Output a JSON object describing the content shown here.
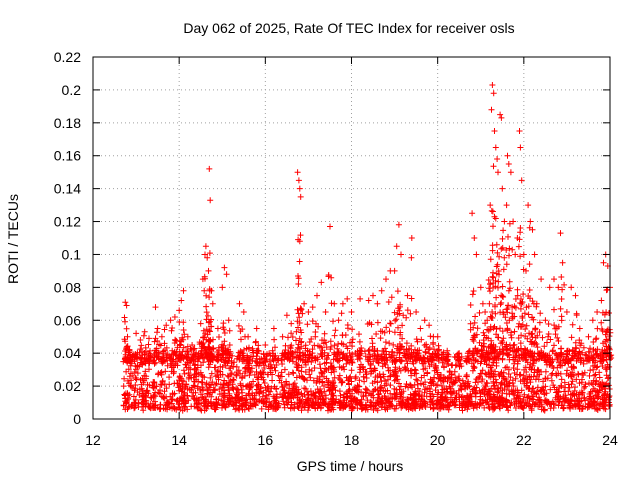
{
  "chart_data": {
    "type": "scatter",
    "title": "Day 062 of 2025, Rate Of TEC Index for receiver osls",
    "xlabel": "GPS time / hours",
    "ylabel": "ROTI / TECUs",
    "xlim": [
      12,
      24
    ],
    "ylim": [
      0,
      0.22
    ],
    "x_ticks": [
      12,
      14,
      16,
      18,
      20,
      22,
      24
    ],
    "x_tick_labels": [
      "12",
      "14",
      "16",
      "18",
      "20",
      "22",
      "24"
    ],
    "y_ticks": [
      0,
      0.02,
      0.04,
      0.06,
      0.08,
      0.1,
      0.12,
      0.14,
      0.16,
      0.18,
      0.2,
      0.22
    ],
    "y_tick_labels": [
      "0",
      "0.02",
      "0.04",
      "0.06",
      "0.08",
      "0.1",
      "0.12",
      "0.14",
      "0.16",
      "0.18",
      "0.2",
      "0.22"
    ],
    "grid": true,
    "marker": "+",
    "marker_color": "#ff0000",
    "series": [
      {
        "name": "ROTI",
        "points": [
          [
            12.75,
            0.071
          ],
          [
            12.78,
            0.069
          ],
          [
            12.8,
            0.05
          ],
          [
            12.85,
            0.042
          ],
          [
            12.9,
            0.035
          ],
          [
            13.0,
            0.052
          ],
          [
            13.1,
            0.048
          ],
          [
            13.2,
            0.053
          ],
          [
            13.3,
            0.049
          ],
          [
            13.45,
            0.068
          ],
          [
            13.5,
            0.055
          ],
          [
            13.6,
            0.05
          ],
          [
            13.7,
            0.057
          ],
          [
            13.8,
            0.06
          ],
          [
            13.9,
            0.062
          ],
          [
            14.0,
            0.066
          ],
          [
            14.05,
            0.072
          ],
          [
            14.1,
            0.078
          ],
          [
            14.2,
            0.05
          ],
          [
            14.3,
            0.045
          ],
          [
            14.5,
            0.058
          ],
          [
            14.55,
            0.085
          ],
          [
            14.6,
            0.1
          ],
          [
            14.62,
            0.105
          ],
          [
            14.65,
            0.098
          ],
          [
            14.68,
            0.09
          ],
          [
            14.7,
            0.152
          ],
          [
            14.72,
            0.133
          ],
          [
            14.75,
            0.078
          ],
          [
            14.78,
            0.07
          ],
          [
            14.9,
            0.055
          ],
          [
            15.0,
            0.08
          ],
          [
            15.05,
            0.092
          ],
          [
            15.1,
            0.088
          ],
          [
            15.15,
            0.06
          ],
          [
            15.4,
            0.07
          ],
          [
            15.5,
            0.065
          ],
          [
            15.6,
            0.05
          ],
          [
            15.8,
            0.055
          ],
          [
            16.0,
            0.045
          ],
          [
            16.2,
            0.055
          ],
          [
            16.4,
            0.05
          ],
          [
            16.5,
            0.063
          ],
          [
            16.6,
            0.058
          ],
          [
            16.75,
            0.15
          ],
          [
            16.78,
            0.145
          ],
          [
            16.8,
            0.14
          ],
          [
            16.82,
            0.135
          ],
          [
            16.9,
            0.07
          ],
          [
            17.0,
            0.065
          ],
          [
            17.1,
            0.068
          ],
          [
            17.2,
            0.075
          ],
          [
            17.3,
            0.083
          ],
          [
            17.4,
            0.065
          ],
          [
            17.5,
            0.117
          ],
          [
            17.6,
            0.07
          ],
          [
            17.7,
            0.06
          ],
          [
            17.8,
            0.07
          ],
          [
            17.9,
            0.073
          ],
          [
            18.0,
            0.065
          ],
          [
            18.2,
            0.073
          ],
          [
            18.4,
            0.072
          ],
          [
            18.5,
            0.075
          ],
          [
            18.6,
            0.07
          ],
          [
            18.7,
            0.078
          ],
          [
            18.8,
            0.085
          ],
          [
            18.9,
            0.09
          ],
          [
            19.0,
            0.09
          ],
          [
            19.05,
            0.105
          ],
          [
            19.1,
            0.118
          ],
          [
            19.15,
            0.1
          ],
          [
            19.2,
            0.063
          ],
          [
            19.3,
            0.075
          ],
          [
            19.4,
            0.11
          ],
          [
            19.5,
            0.065
          ],
          [
            19.6,
            0.055
          ],
          [
            19.7,
            0.06
          ],
          [
            19.8,
            0.057
          ],
          [
            19.9,
            0.05
          ],
          [
            20.0,
            0.05
          ],
          [
            20.2,
            0.038
          ],
          [
            20.5,
            0.04
          ],
          [
            20.7,
            0.04
          ],
          [
            20.8,
            0.125
          ],
          [
            20.85,
            0.11
          ],
          [
            20.9,
            0.1
          ],
          [
            21.0,
            0.08
          ],
          [
            21.05,
            0.07
          ],
          [
            21.1,
            0.065
          ],
          [
            21.15,
            0.06
          ],
          [
            21.2,
            0.07
          ],
          [
            21.22,
            0.13
          ],
          [
            21.25,
            0.188
          ],
          [
            21.27,
            0.203
          ],
          [
            21.3,
            0.198
          ],
          [
            21.32,
            0.175
          ],
          [
            21.35,
            0.165
          ],
          [
            21.38,
            0.158
          ],
          [
            21.4,
            0.15
          ],
          [
            21.45,
            0.185
          ],
          [
            21.48,
            0.183
          ],
          [
            21.5,
            0.14
          ],
          [
            21.55,
            0.12
          ],
          [
            21.6,
            0.13
          ],
          [
            21.62,
            0.16
          ],
          [
            21.65,
            0.155
          ],
          [
            21.7,
            0.15
          ],
          [
            21.75,
            0.12
          ],
          [
            21.8,
            0.1
          ],
          [
            21.85,
            0.11
          ],
          [
            21.9,
            0.175
          ],
          [
            21.92,
            0.165
          ],
          [
            21.95,
            0.145
          ],
          [
            22.0,
            0.1
          ],
          [
            22.05,
            0.09
          ],
          [
            22.1,
            0.13
          ],
          [
            22.15,
            0.12
          ],
          [
            22.2,
            0.115
          ],
          [
            22.25,
            0.1
          ],
          [
            22.3,
            0.07
          ],
          [
            22.4,
            0.085
          ],
          [
            22.5,
            0.06
          ],
          [
            22.6,
            0.08
          ],
          [
            22.7,
            0.085
          ],
          [
            22.8,
            0.08
          ],
          [
            22.85,
            0.113
          ],
          [
            22.9,
            0.095
          ],
          [
            23.0,
            0.065
          ],
          [
            23.1,
            0.08
          ],
          [
            23.2,
            0.075
          ],
          [
            23.3,
            0.055
          ],
          [
            23.5,
            0.05
          ],
          [
            23.6,
            0.06
          ],
          [
            23.7,
            0.065
          ],
          [
            23.8,
            0.072
          ],
          [
            23.85,
            0.095
          ],
          [
            23.9,
            0.1
          ],
          [
            23.95,
            0.093
          ],
          [
            24.0,
            0.08
          ]
        ]
      }
    ],
    "baseline_band": {
      "x_range": [
        12.7,
        24.0
      ],
      "y_range": [
        0.005,
        0.04
      ]
    }
  }
}
